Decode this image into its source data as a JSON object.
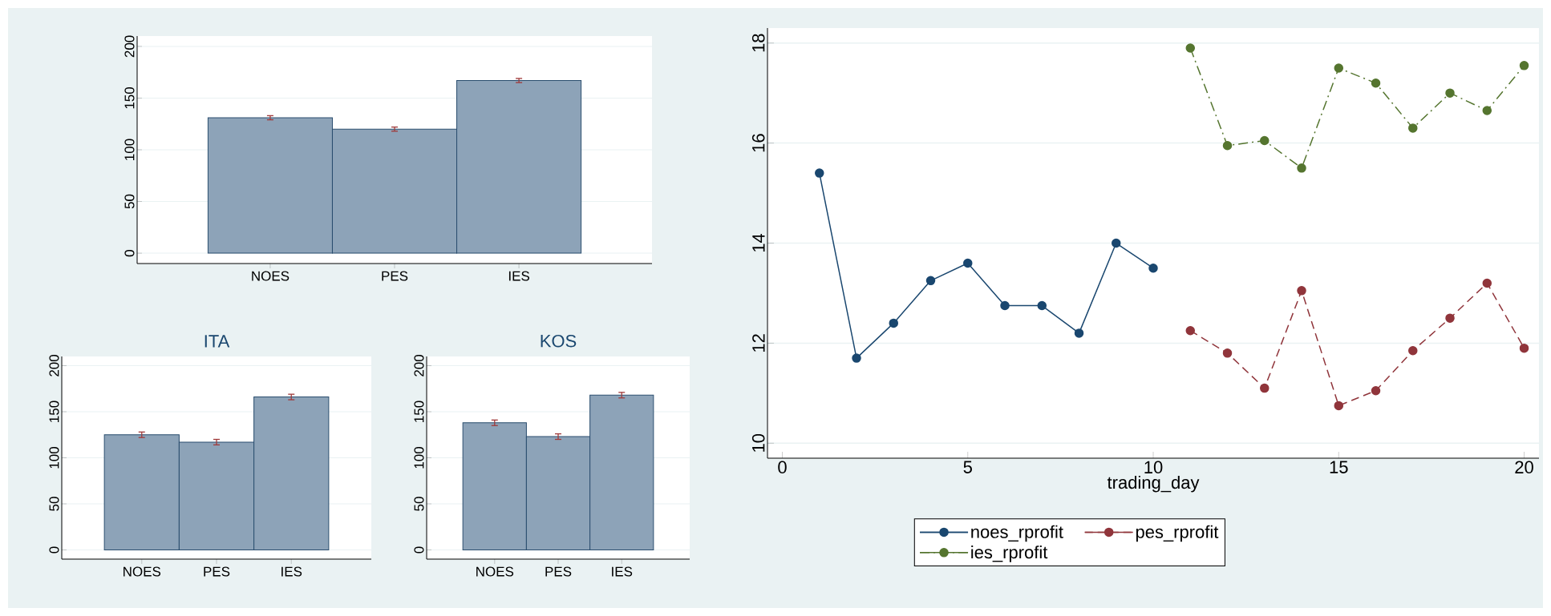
{
  "chart_data": [
    {
      "type": "bar",
      "categories": [
        "NOES",
        "PES",
        "IES"
      ],
      "values": [
        131,
        120,
        167
      ],
      "errors": [
        2,
        2,
        2
      ],
      "color": "#8da3b8",
      "ylim": [
        -10,
        210
      ],
      "yticks": [
        0,
        50,
        100,
        150,
        200
      ],
      "grid": "y"
    },
    {
      "type": "bar",
      "title": "ITA",
      "categories": [
        "NOES",
        "PES",
        "IES"
      ],
      "values": [
        125,
        117,
        166
      ],
      "errors": [
        3,
        3,
        3
      ],
      "color": "#8da3b8",
      "ylim": [
        -10,
        210
      ],
      "yticks": [
        0,
        50,
        100,
        150,
        200
      ],
      "grid": "y"
    },
    {
      "type": "bar",
      "title": "KOS",
      "categories": [
        "NOES",
        "PES",
        "IES"
      ],
      "values": [
        138,
        123,
        168
      ],
      "errors": [
        3,
        3,
        3
      ],
      "color": "#8da3b8",
      "ylim": [
        -10,
        210
      ],
      "yticks": [
        0,
        50,
        100,
        150,
        200
      ],
      "grid": "y"
    },
    {
      "type": "line",
      "xlabel": "trading_day",
      "xlim": [
        -0.4,
        20.4
      ],
      "ylim": [
        9.7,
        18.3
      ],
      "xticks": [
        0,
        5,
        10,
        15,
        20
      ],
      "yticks": [
        10,
        12,
        14,
        16,
        18
      ],
      "grid": "y",
      "legend": "bottom",
      "marker": "circle",
      "series": [
        {
          "name": "noes_rprofit",
          "color": "#1a476f",
          "line_style": "solid",
          "x": [
            1,
            2,
            3,
            4,
            5,
            6,
            7,
            8,
            9,
            10
          ],
          "values": [
            15.4,
            11.7,
            12.4,
            13.25,
            13.6,
            12.75,
            12.75,
            12.2,
            14.0,
            13.5
          ]
        },
        {
          "name": "pes_rprofit",
          "color": "#90353b",
          "line_style": "dashed",
          "x": [
            11,
            12,
            13,
            14,
            15,
            16,
            17,
            18,
            19,
            20
          ],
          "values": [
            12.25,
            11.8,
            11.1,
            13.05,
            10.75,
            11.05,
            11.85,
            12.5,
            13.2,
            11.9
          ]
        },
        {
          "name": "ies_rprofit",
          "color": "#55752f",
          "line_style": "dashdot",
          "x": [
            11,
            12,
            13,
            14,
            15,
            16,
            17,
            18,
            19,
            20
          ],
          "values": [
            17.9,
            15.95,
            16.05,
            15.5,
            17.5,
            17.2,
            16.3,
            17.0,
            16.65,
            17.55
          ]
        }
      ]
    }
  ]
}
